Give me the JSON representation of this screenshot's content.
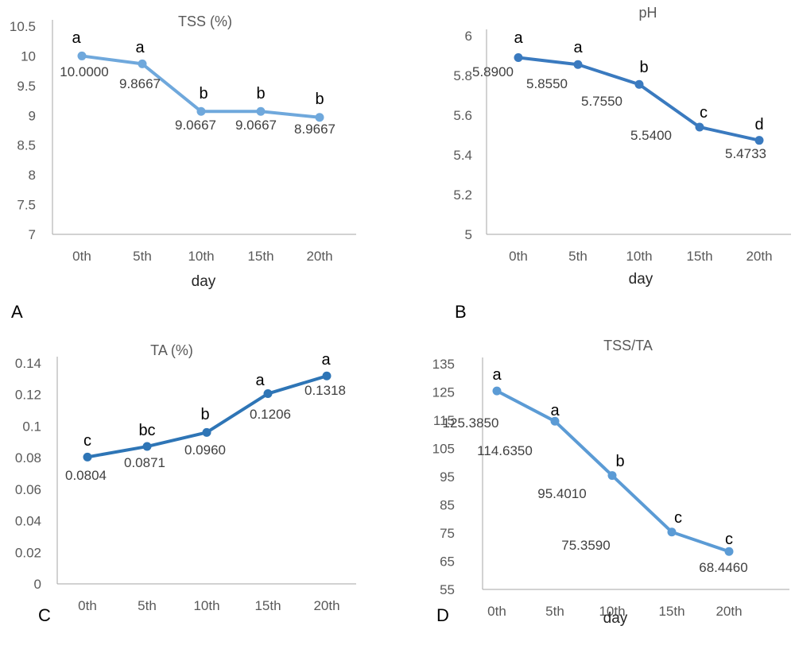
{
  "chart_data": [
    {
      "panel": "A",
      "type": "line",
      "title": "TSS (%)",
      "xlabel": "day",
      "ylabel": "",
      "categories": [
        "0th",
        "5th",
        "10th",
        "15th",
        "20th"
      ],
      "ylim": [
        7,
        10.5
      ],
      "yticks": [
        "10.5",
        "10",
        "9.5",
        "9",
        "8.5",
        "8",
        "7.5",
        "7"
      ],
      "color": "#6fa8dc",
      "series": [
        {
          "values": [
            10.0,
            9.8667,
            9.0667,
            9.0667,
            8.9667
          ],
          "value_labels": [
            "10.0000",
            "9.8667",
            "9.0667",
            "9.0667",
            "8.9667"
          ],
          "letters": [
            "a",
            "a",
            "b",
            "b",
            "b"
          ]
        }
      ]
    },
    {
      "panel": "B",
      "type": "line",
      "title": "pH",
      "xlabel": "day",
      "ylabel": "",
      "categories": [
        "0th",
        "5th",
        "10th",
        "15th",
        "20th"
      ],
      "ylim": [
        5,
        6
      ],
      "yticks": [
        "6",
        "5.8",
        "5.6",
        "5.4",
        "5.2",
        "5"
      ],
      "color": "#3a7abf",
      "series": [
        {
          "values": [
            5.89,
            5.855,
            5.755,
            5.54,
            5.4733
          ],
          "value_labels": [
            "5.8900",
            "5.8550",
            "5.7550",
            "5.5400",
            "5.4733"
          ],
          "letters": [
            "a",
            "a",
            "b",
            "c",
            "d"
          ]
        }
      ]
    },
    {
      "panel": "C",
      "type": "line",
      "title": "TA (%)",
      "xlabel": "",
      "ylabel": "",
      "categories": [
        "0th",
        "5th",
        "10th",
        "15th",
        "20th"
      ],
      "ylim": [
        0,
        0.14
      ],
      "yticks": [
        "0.14",
        "0.12",
        "0.1",
        "0.08",
        "0.06",
        "0.04",
        "0.02",
        "0"
      ],
      "color": "#2e75b6",
      "series": [
        {
          "values": [
            0.0804,
            0.0871,
            0.096,
            0.1206,
            0.1318
          ],
          "value_labels": [
            "0.0804",
            "0.0871",
            "0.0960",
            "0.1206",
            "0.1318"
          ],
          "letters": [
            "c",
            "bc",
            "b",
            "a",
            "a"
          ]
        }
      ]
    },
    {
      "panel": "D",
      "type": "line",
      "title": "TSS/TA",
      "xlabel": "day",
      "ylabel": "",
      "categories": [
        "0th",
        "5th",
        "10th",
        "15th",
        "20th"
      ],
      "ylim": [
        55,
        135
      ],
      "yticks": [
        "135",
        "125",
        "115",
        "105",
        "95",
        "85",
        "75",
        "65",
        "55"
      ],
      "color": "#5b9bd5",
      "series": [
        {
          "values": [
            125.385,
            114.635,
            95.401,
            75.359,
            68.446
          ],
          "value_labels": [
            "125.3850",
            "114.6350",
            "95.4010",
            "75.3590",
            "68.4460"
          ],
          "letters": [
            "a",
            "a",
            "b",
            "c",
            "c"
          ]
        }
      ]
    }
  ]
}
